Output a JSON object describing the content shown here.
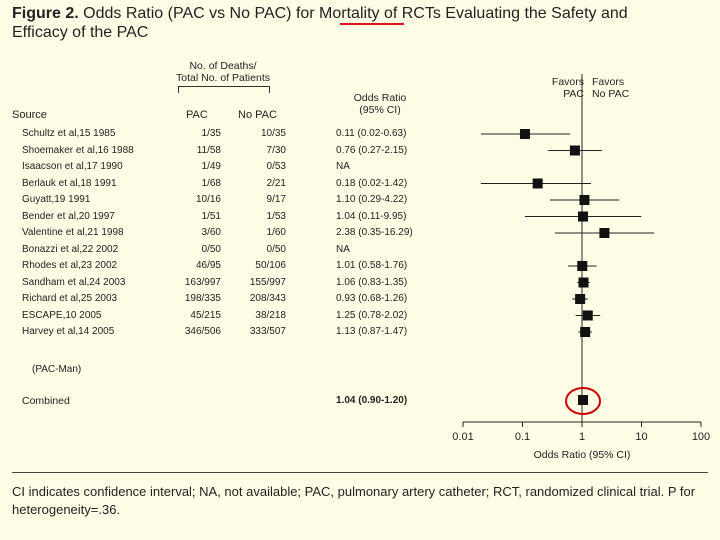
{
  "title": {
    "prefix": "Figure 2.",
    "line1": "Odds Ratio (PAC vs No PAC) for Mortality of RCTs Evaluating the Safety and",
    "line2": "Efficacy of the PAC"
  },
  "headers": {
    "group": "No. of Deaths/\nTotal No. of Patients",
    "source": "Source",
    "pac": "PAC",
    "nopac": "No PAC",
    "or": "Odds Ratio\n(95% CI)",
    "favors_pac": "Favors\nPAC",
    "favors_nopac": "Favors\nNo PAC"
  },
  "rows": [
    {
      "source": "Schultz et al,15 1985",
      "pac": "1/35",
      "nopac": "10/35",
      "or": "0.11 (0.02-0.63)"
    },
    {
      "source": "Shoemaker et al,16 1988",
      "pac": "11/58",
      "nopac": "7/30",
      "or": "0.76 (0.27-2.15)"
    },
    {
      "source": "Isaacson et al,17 1990",
      "pac": "1/49",
      "nopac": "0/53",
      "or": "NA"
    },
    {
      "source": "Berlauk et al,18 1991",
      "pac": "1/68",
      "nopac": "2/21",
      "or": "0.18 (0.02-1.42)"
    },
    {
      "source": "Guyatt,19 1991",
      "pac": "10/16",
      "nopac": "9/17",
      "or": "1.10 (0.29-4.22)"
    },
    {
      "source": "Bender et al,20 1997",
      "pac": "1/51",
      "nopac": "1/53",
      "or": "1.04 (0.11-9.95)"
    },
    {
      "source": "Valentine et al,21 1998",
      "pac": "3/60",
      "nopac": "1/60",
      "or": "2.38 (0.35-16.29)"
    },
    {
      "source": "Bonazzi et al,22 2002",
      "pac": "0/50",
      "nopac": "0/50",
      "or": "NA"
    },
    {
      "source": "Rhodes et al,23 2002",
      "pac": "46/95",
      "nopac": "50/106",
      "or": "1.01 (0.58-1.76)"
    },
    {
      "source": "Sandham et al,24 2003",
      "pac": "163/997",
      "nopac": "155/997",
      "or": "1.06 (0.83-1.35)"
    },
    {
      "source": "Richard et al,25 2003",
      "pac": "198/335",
      "nopac": "208/343",
      "or": "0.93 (0.68-1.26)"
    },
    {
      "source": "ESCAPE,10 2005",
      "pac": "45/215",
      "nopac": "38/218",
      "or": "1.25 (0.78-2.02)"
    },
    {
      "source": "Harvey et al,14 2005",
      "pac": "346/506",
      "nopac": "333/507",
      "or": "1.13 (0.87-1.47)"
    }
  ],
  "row_note": "(PAC-Man)",
  "combined": {
    "source": "Combined",
    "or": "1.04 (0.90-1.20)"
  },
  "footnote": "CI indicates confidence interval; NA, not available; PAC, pulmonary artery catheter; RCT, randomized clinical trial. P for heterogeneity=.36.",
  "chart_data": {
    "type": "forest",
    "title": "Odds Ratio (PAC vs No PAC) for Mortality of RCTs Evaluating the Safety and Efficacy of the PAC",
    "xlabel": "Odds Ratio (95% CI)",
    "xscale": "log",
    "xlim": [
      0.01,
      100
    ],
    "xticks": [
      "0.01",
      "0.1",
      "1",
      "10",
      "100"
    ],
    "reference_line": 1,
    "studies": [
      {
        "name": "Schultz et al, 1985",
        "or": 0.11,
        "lo": 0.02,
        "hi": 0.63
      },
      {
        "name": "Shoemaker et al, 1988",
        "or": 0.76,
        "lo": 0.27,
        "hi": 2.15
      },
      {
        "name": "Isaacson et al, 1990",
        "or": null,
        "lo": null,
        "hi": null
      },
      {
        "name": "Berlauk et al, 1991",
        "or": 0.18,
        "lo": 0.02,
        "hi": 1.42
      },
      {
        "name": "Guyatt, 1991",
        "or": 1.1,
        "lo": 0.29,
        "hi": 4.22
      },
      {
        "name": "Bender et al, 1997",
        "or": 1.04,
        "lo": 0.11,
        "hi": 9.95
      },
      {
        "name": "Valentine et al, 1998",
        "or": 2.38,
        "lo": 0.35,
        "hi": 16.29
      },
      {
        "name": "Bonazzi et al, 2002",
        "or": null,
        "lo": null,
        "hi": null
      },
      {
        "name": "Rhodes et al, 2002",
        "or": 1.01,
        "lo": 0.58,
        "hi": 1.76
      },
      {
        "name": "Sandham et al, 2003",
        "or": 1.06,
        "lo": 0.83,
        "hi": 1.35
      },
      {
        "name": "Richard et al, 2003",
        "or": 0.93,
        "lo": 0.68,
        "hi": 1.26
      },
      {
        "name": "ESCAPE, 2005",
        "or": 1.25,
        "lo": 0.78,
        "hi": 2.02
      },
      {
        "name": "Harvey et al, 2005 (PAC-Man)",
        "or": 1.13,
        "lo": 0.87,
        "hi": 1.47
      }
    ],
    "combined": {
      "name": "Combined",
      "or": 1.04,
      "lo": 0.9,
      "hi": 1.2
    },
    "annotation_color": "#cc0000"
  }
}
